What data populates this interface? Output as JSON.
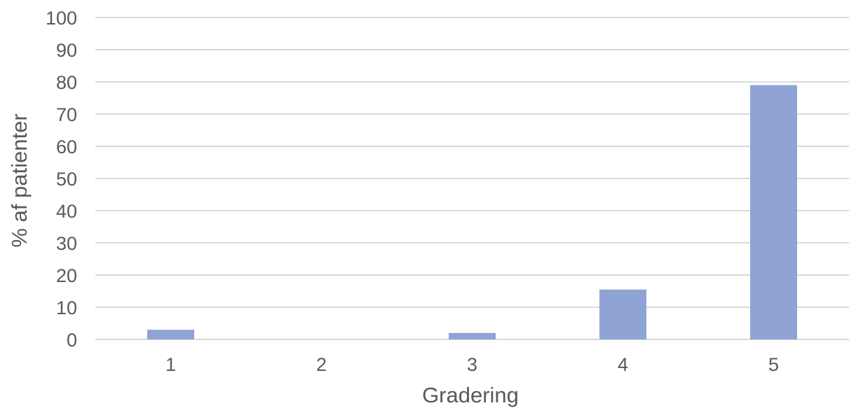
{
  "chart_data": {
    "type": "bar",
    "title": "",
    "xlabel": "Gradering",
    "ylabel": "% af patienter",
    "categories": [
      "1",
      "2",
      "3",
      "4",
      "5"
    ],
    "values": [
      3,
      0,
      2,
      15.5,
      79
    ],
    "ylim": [
      0,
      100
    ],
    "yticks": [
      0,
      10,
      20,
      30,
      40,
      50,
      60,
      70,
      80,
      90,
      100
    ],
    "grid": true,
    "legend": "none",
    "colors": {
      "bar": "#8FA4D5",
      "grid": "#D9D9D9",
      "text": "#595959"
    }
  }
}
